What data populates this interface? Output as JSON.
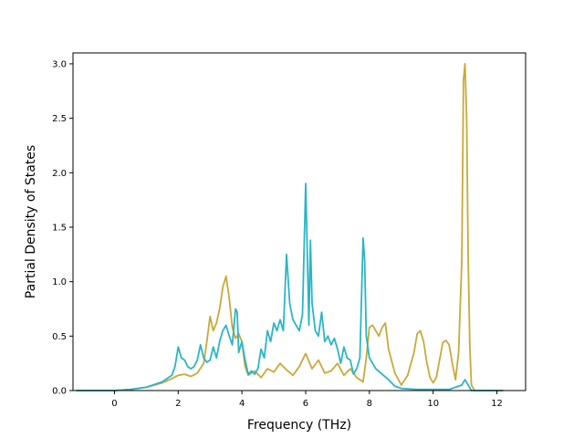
{
  "chart_data": {
    "type": "line",
    "title": "",
    "xlabel": "Frequency (THz)",
    "ylabel": "Partial Density of States",
    "xlim": [
      -1.3,
      12.9
    ],
    "ylim": [
      0.0,
      3.1
    ],
    "xticks": [
      0,
      2,
      4,
      6,
      8,
      10,
      12
    ],
    "yticks": [
      0.0,
      0.5,
      1.0,
      1.5,
      2.0,
      2.5,
      3.0
    ],
    "xtick_labels": [
      "0",
      "2",
      "4",
      "6",
      "8",
      "10",
      "12"
    ],
    "ytick_labels": [
      "0.0",
      "0.5",
      "1.0",
      "1.5",
      "2.0",
      "2.5",
      "3.0"
    ],
    "grid": false,
    "legend": "none",
    "series": [
      {
        "color": "#c9a93a",
        "x": [
          -1.2,
          -0.5,
          0,
          0.5,
          1.0,
          1.5,
          1.8,
          2.0,
          2.2,
          2.4,
          2.6,
          2.8,
          2.9,
          3.0,
          3.1,
          3.2,
          3.3,
          3.4,
          3.5,
          3.6,
          3.7,
          3.8,
          3.9,
          4.0,
          4.1,
          4.2,
          4.4,
          4.6,
          4.8,
          5.0,
          5.2,
          5.4,
          5.6,
          5.8,
          6.0,
          6.2,
          6.4,
          6.6,
          6.8,
          7.0,
          7.2,
          7.4,
          7.6,
          7.8,
          7.9,
          8.0,
          8.1,
          8.2,
          8.3,
          8.4,
          8.5,
          8.6,
          8.8,
          9.0,
          9.2,
          9.4,
          9.5,
          9.6,
          9.7,
          9.8,
          9.9,
          10.0,
          10.1,
          10.2,
          10.3,
          10.4,
          10.5,
          10.6,
          10.7,
          10.8,
          10.9,
          10.95,
          11.0,
          11.05,
          11.1,
          11.15,
          11.2,
          11.3,
          11.5,
          12.2
        ],
        "y": [
          0.0,
          0.0,
          0.0,
          0.01,
          0.03,
          0.07,
          0.11,
          0.14,
          0.15,
          0.13,
          0.16,
          0.25,
          0.45,
          0.68,
          0.55,
          0.62,
          0.75,
          0.95,
          1.05,
          0.85,
          0.58,
          0.48,
          0.52,
          0.45,
          0.22,
          0.14,
          0.18,
          0.12,
          0.2,
          0.17,
          0.25,
          0.19,
          0.14,
          0.22,
          0.34,
          0.2,
          0.28,
          0.16,
          0.18,
          0.25,
          0.14,
          0.2,
          0.12,
          0.08,
          0.3,
          0.58,
          0.6,
          0.55,
          0.5,
          0.58,
          0.62,
          0.38,
          0.16,
          0.05,
          0.14,
          0.35,
          0.52,
          0.55,
          0.45,
          0.26,
          0.12,
          0.07,
          0.12,
          0.28,
          0.44,
          0.46,
          0.42,
          0.25,
          0.1,
          0.35,
          1.2,
          2.85,
          3.0,
          2.5,
          1.2,
          0.4,
          0.05,
          0.0,
          0.0,
          0.0
        ]
      },
      {
        "color": "#2bb5c5",
        "x": [
          -1.2,
          -0.5,
          0,
          0.5,
          1.0,
          1.5,
          1.8,
          1.9,
          2.0,
          2.1,
          2.2,
          2.3,
          2.4,
          2.5,
          2.6,
          2.7,
          2.8,
          2.9,
          3.0,
          3.1,
          3.2,
          3.3,
          3.4,
          3.5,
          3.6,
          3.7,
          3.8,
          3.85,
          3.9,
          4.0,
          4.1,
          4.2,
          4.3,
          4.4,
          4.5,
          4.6,
          4.7,
          4.8,
          4.9,
          5.0,
          5.1,
          5.2,
          5.3,
          5.4,
          5.5,
          5.6,
          5.7,
          5.8,
          5.9,
          6.0,
          6.05,
          6.1,
          6.15,
          6.2,
          6.3,
          6.4,
          6.5,
          6.6,
          6.7,
          6.8,
          6.9,
          7.0,
          7.1,
          7.2,
          7.3,
          7.4,
          7.5,
          7.6,
          7.7,
          7.8,
          7.85,
          7.9,
          8.0,
          8.2,
          8.4,
          8.6,
          8.8,
          9.0,
          9.5,
          10.0,
          10.5,
          10.9,
          11.0,
          11.1,
          11.2,
          12.2
        ],
        "y": [
          0.0,
          0.0,
          0.0,
          0.01,
          0.03,
          0.08,
          0.14,
          0.22,
          0.4,
          0.3,
          0.28,
          0.22,
          0.2,
          0.22,
          0.28,
          0.42,
          0.3,
          0.26,
          0.28,
          0.4,
          0.3,
          0.45,
          0.55,
          0.6,
          0.5,
          0.42,
          0.75,
          0.72,
          0.35,
          0.45,
          0.28,
          0.15,
          0.18,
          0.15,
          0.2,
          0.38,
          0.3,
          0.55,
          0.45,
          0.62,
          0.55,
          0.65,
          0.55,
          1.25,
          0.8,
          0.65,
          0.6,
          0.55,
          0.7,
          1.9,
          1.3,
          0.6,
          1.38,
          0.8,
          0.55,
          0.5,
          0.72,
          0.45,
          0.5,
          0.42,
          0.48,
          0.38,
          0.25,
          0.4,
          0.3,
          0.28,
          0.15,
          0.2,
          0.3,
          1.4,
          1.2,
          0.5,
          0.3,
          0.2,
          0.15,
          0.1,
          0.04,
          0.02,
          0.01,
          0.01,
          0.01,
          0.05,
          0.1,
          0.05,
          0.0,
          0.0
        ]
      }
    ]
  }
}
